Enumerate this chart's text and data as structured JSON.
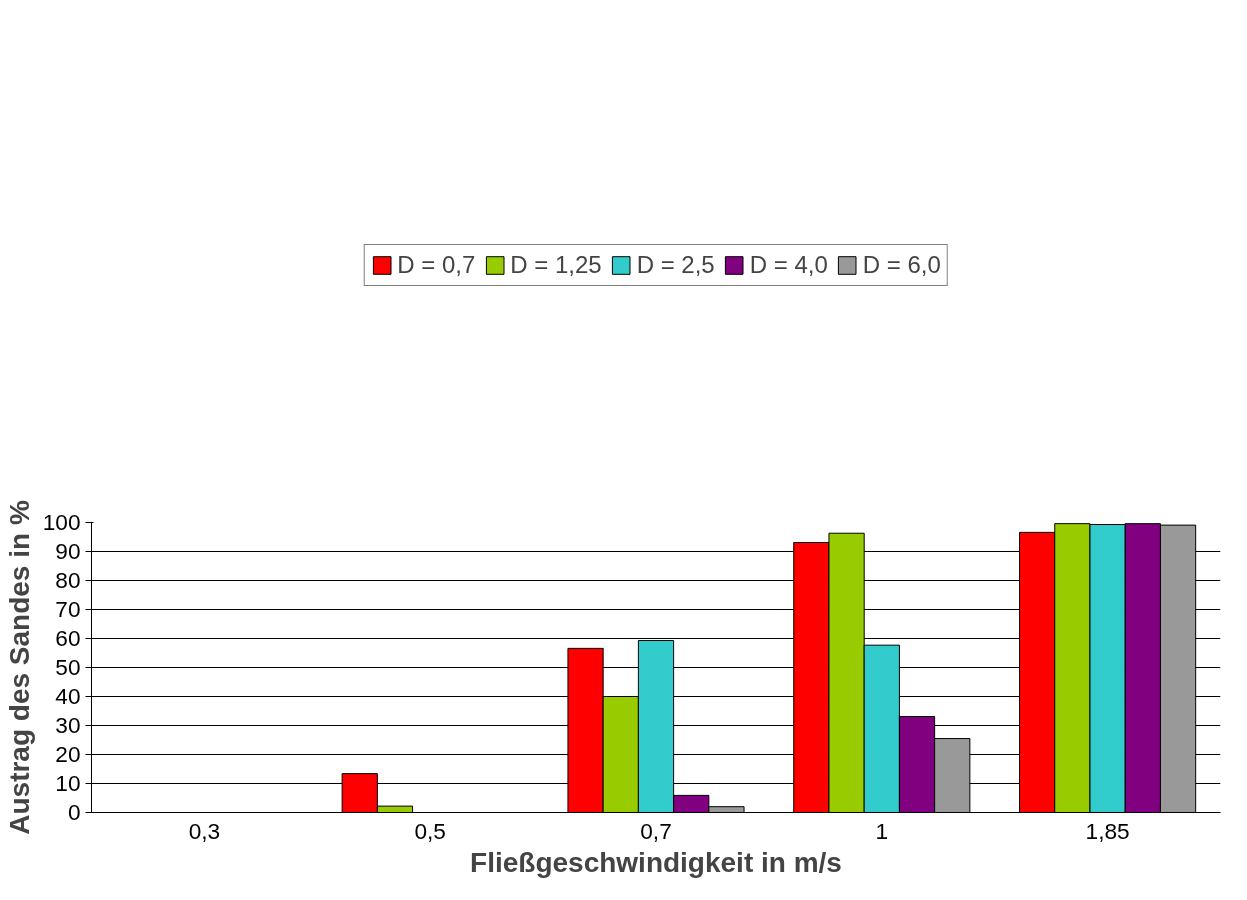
{
  "chart_data": {
    "type": "bar",
    "xlabel": "Fließgeschwindigkeit in m/s",
    "ylabel": "Austrag des Sandes in %",
    "categories": [
      "0,3",
      "0,5",
      "0,7",
      "1",
      "1,85"
    ],
    "series": [
      {
        "name": "D = 0,7",
        "color": "#ff0000",
        "values": [
          null,
          13.4,
          56.6,
          93.1,
          96.6
        ]
      },
      {
        "name": "D = 1,25",
        "color": "#99cc00",
        "values": [
          null,
          2.2,
          40.0,
          96.3,
          99.6
        ]
      },
      {
        "name": "D = 2,5",
        "color": "#33cccc",
        "values": [
          null,
          null,
          59.3,
          57.7,
          99.3
        ]
      },
      {
        "name": "D = 4,0",
        "color": "#800080",
        "values": [
          null,
          null,
          5.9,
          33.1,
          99.6
        ]
      },
      {
        "name": "D = 6,0",
        "color": "#999999",
        "values": [
          null,
          null,
          2.0,
          25.5,
          99.1
        ]
      }
    ],
    "ylim": [
      0,
      100
    ],
    "yticks": [
      0,
      10,
      20,
      30,
      40,
      50,
      60,
      70,
      80,
      90,
      100
    ],
    "grid": "y",
    "legend": "top"
  }
}
